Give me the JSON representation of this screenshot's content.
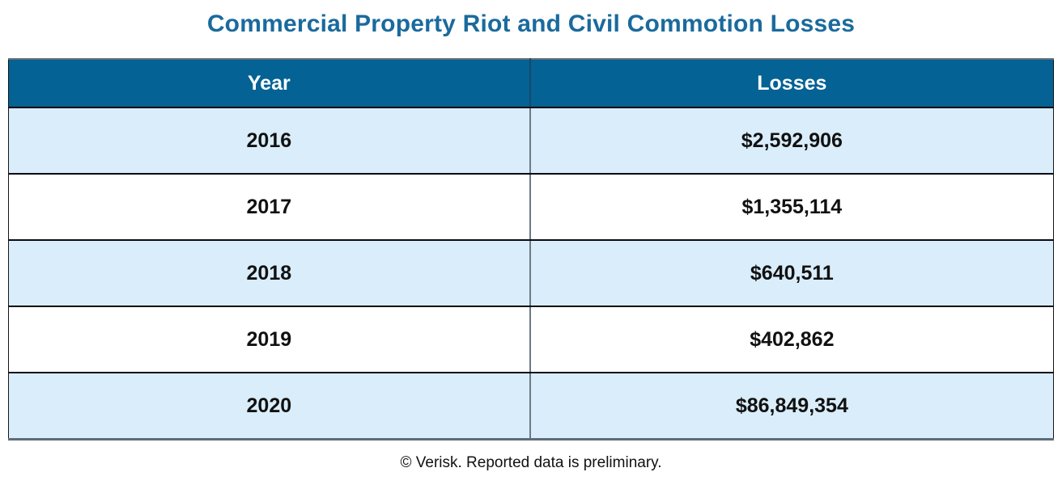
{
  "title": "Commercial Property Riot and Civil Commotion Losses",
  "table": {
    "columns": [
      "Year",
      "Losses"
    ],
    "rows": [
      {
        "year": "2016",
        "losses": "$2,592,906"
      },
      {
        "year": "2017",
        "losses": "$1,355,114"
      },
      {
        "year": "2018",
        "losses": "$640,511"
      },
      {
        "year": "2019",
        "losses": "$402,862"
      },
      {
        "year": "2020",
        "losses": "$86,849,354"
      }
    ]
  },
  "footer": "© Verisk. Reported data is preliminary.",
  "colors": {
    "title_text": "#1a6a9d",
    "header_bg": "#046294",
    "header_text": "#ffffff",
    "row_alt_bg": "#d9edfa",
    "row_bg": "#ffffff",
    "cell_text": "#111111",
    "grid_gray": "#5f6d79",
    "grid_black": "#0a0a14",
    "body_divider": "#6b7a85",
    "header_divider": "#17496a"
  },
  "chart_data": {
    "type": "table",
    "title": "Commercial Property Riot and Civil Commotion Losses",
    "columns": [
      "Year",
      "Losses"
    ],
    "categories": [
      "2016",
      "2017",
      "2018",
      "2019",
      "2020"
    ],
    "values": [
      2592906,
      1355114,
      640511,
      402862,
      86849354
    ],
    "values_formatted": [
      "$2,592,906",
      "$1,355,114",
      "$640,511",
      "$402,862",
      "$86,849,354"
    ],
    "footnote": "© Verisk. Reported data is preliminary.",
    "layout": {
      "striped_rows": true,
      "stripe_color": "#d9edfa",
      "header_color": "#046294"
    }
  }
}
